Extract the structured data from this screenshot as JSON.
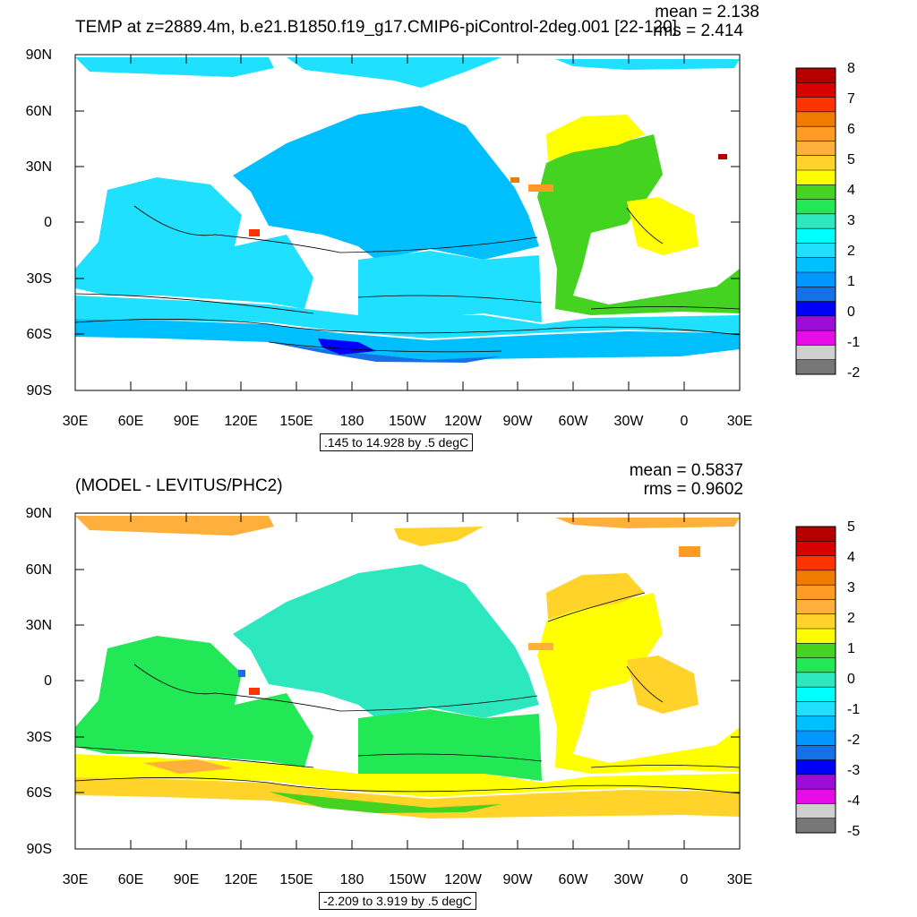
{
  "panels": [
    {
      "title": "TEMP at z=2889.4m, b.e21.B1850.f19_g17.CMIP6-piControl-2deg.001 [22-120]",
      "mean_text": "mean = 2.138",
      "rms_text": "rms = 2.414",
      "info_text": ".145 to 14.928 by .5 degC",
      "colorbar": {
        "labels": [
          "8",
          "7",
          "6",
          "5",
          "4",
          "3",
          "2",
          "1",
          "0",
          "-1",
          "-2"
        ],
        "colors": [
          "#b60000",
          "#d80000",
          "#ff3300",
          "#ef7c00",
          "#ff9a23",
          "#ffaf3c",
          "#ffd329",
          "#ffff00",
          "#45d322",
          "#22e856",
          "#2de8bf",
          "#01ffff",
          "#1fe1ff",
          "#00bfff",
          "#0097ff",
          "#1571e6",
          "#0000ff",
          "#9b0ed7",
          "#e60ce6",
          "#d0d0d0",
          "#777777"
        ]
      }
    },
    {
      "title": "(MODEL - LEVITUS/PHC2)",
      "mean_text": "mean = 0.5837",
      "rms_text": "rms = 0.9602",
      "info_text": "-2.209 to 3.919 by .5 degC",
      "colorbar": {
        "labels": [
          "5",
          "4",
          "3",
          "2",
          "1",
          "0",
          "-1",
          "-2",
          "-3",
          "-4",
          "-5"
        ],
        "colors": [
          "#b60000",
          "#d80000",
          "#ff3300",
          "#ef7c00",
          "#ff9a23",
          "#ffaf3c",
          "#ffd329",
          "#ffff00",
          "#45d322",
          "#22e856",
          "#2de8bf",
          "#01ffff",
          "#1fe1ff",
          "#00bfff",
          "#0097ff",
          "#1571e6",
          "#0000ff",
          "#9b0ed7",
          "#e60ce6",
          "#d0d0d0",
          "#777777"
        ]
      }
    }
  ],
  "lat_labels": [
    "90N",
    "60N",
    "30N",
    "0",
    "30S",
    "60S",
    "90S"
  ],
  "lon_labels": [
    "30E",
    "60E",
    "90E",
    "120E",
    "150E",
    "180",
    "150W",
    "120W",
    "90W",
    "60W",
    "30W",
    "0",
    "30E"
  ]
}
